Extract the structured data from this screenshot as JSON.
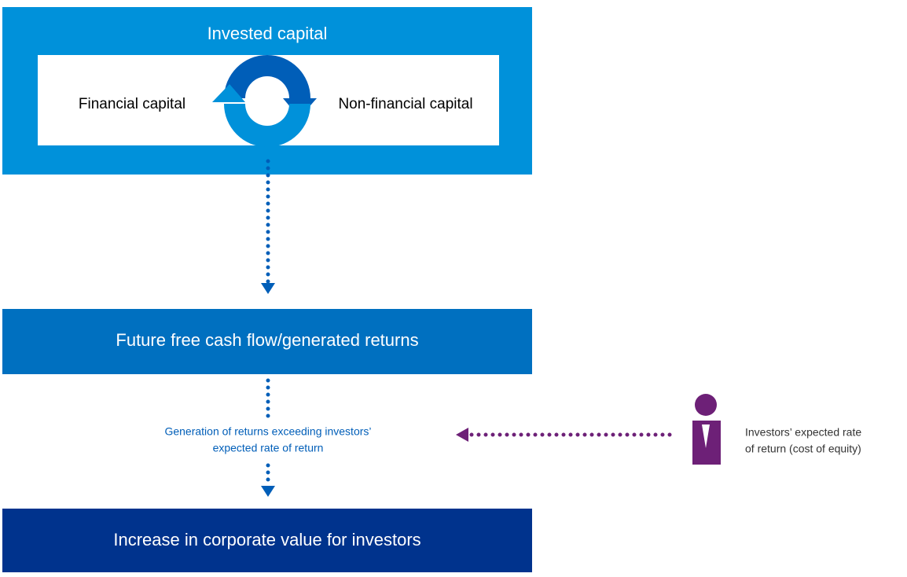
{
  "diagram": {
    "invested_capital": {
      "title": "Invested capital",
      "left": "Financial capital",
      "right": "Non-financial capital"
    },
    "cash_flow": "Future free cash flow/generated returns",
    "generation": [
      "Generation of returns exceeding investors’",
      "expected rate of return"
    ],
    "corporate_value": "Increase in corporate value for investors",
    "investor": [
      "Investors’ expected rate",
      "of return (cost of equity)"
    ]
  }
}
